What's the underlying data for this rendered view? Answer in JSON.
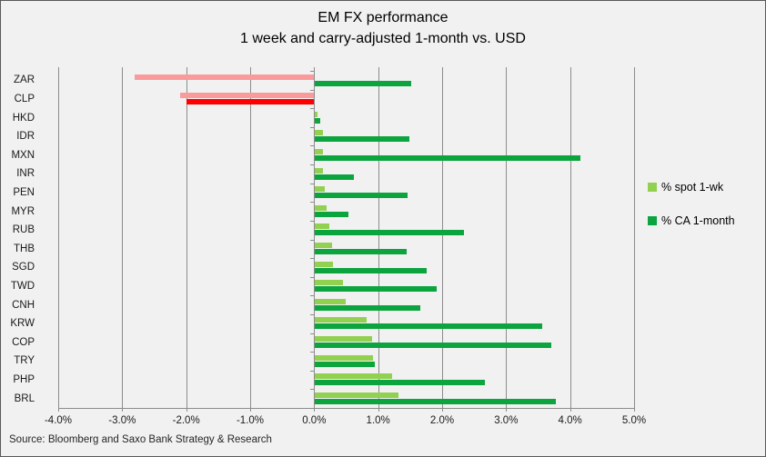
{
  "title": {
    "line1": "EM FX performance",
    "line2": "1 week and carry-adjusted 1-month vs. USD"
  },
  "source": "Source: Bloomberg and Saxo Bank Strategy & Research",
  "colors": {
    "spot_pos": "#92D050",
    "spot_neg": "#FB9A9A",
    "ca_pos": "#0CA43F",
    "ca_neg": "#FE0000",
    "gridline": "#8C8C8C",
    "background": "#F1F1F1",
    "border": "#595959"
  },
  "chart_data": {
    "type": "bar",
    "orientation": "horizontal",
    "title": "EM FX performance — 1 week and carry-adjusted 1-month vs. USD",
    "xlabel": "",
    "ylabel": "",
    "xlim": [
      -4.0,
      5.0
    ],
    "x_tick_labels": [
      "-4.0%",
      "-3.0%",
      "-2.0%",
      "-1.0%",
      "0.0%",
      "1.0%",
      "2.0%",
      "3.0%",
      "4.0%",
      "5.0%"
    ],
    "grid": true,
    "legend_position": "right",
    "categories": [
      "ZAR",
      "CLP",
      "HKD",
      "IDR",
      "MXN",
      "INR",
      "PEN",
      "MYR",
      "RUB",
      "THB",
      "SGD",
      "TWD",
      "CNH",
      "KRW",
      "COP",
      "TRY",
      "PHP",
      "BRL"
    ],
    "series": [
      {
        "name": "% spot 1-wk",
        "values": [
          -2.8,
          -2.1,
          0.04,
          0.12,
          0.13,
          0.13,
          0.15,
          0.18,
          0.22,
          0.27,
          0.28,
          0.44,
          0.48,
          0.8,
          0.89,
          0.91,
          1.2,
          1.31
        ]
      },
      {
        "name": "% CA 1-month",
        "values": [
          1.5,
          -2.0,
          0.08,
          1.47,
          4.15,
          0.61,
          1.45,
          0.52,
          2.32,
          1.43,
          1.75,
          1.9,
          1.64,
          3.55,
          3.69,
          0.93,
          2.65,
          3.76
        ]
      }
    ]
  }
}
